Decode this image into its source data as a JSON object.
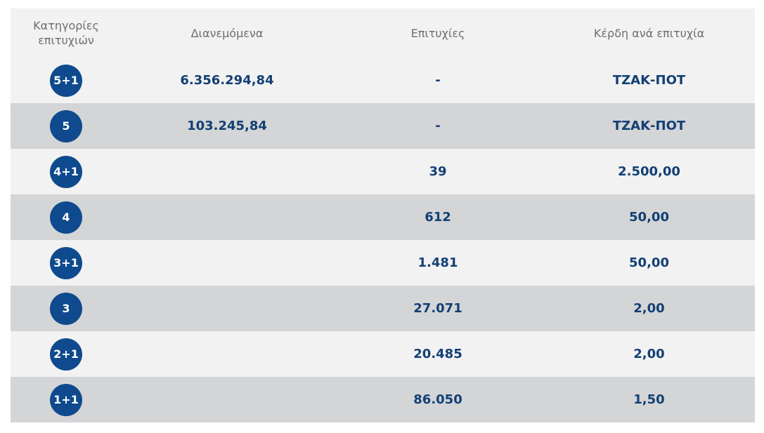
{
  "table": {
    "headers": {
      "category_line1": "Κατηγορίες",
      "category_line2": "επιτυχιών",
      "distributed": "Διανεμόμενα",
      "winners": "Επιτυχίες",
      "prize_per_winner": "Κέρδη ανά επιτυχία"
    },
    "rows": [
      {
        "category": "5+1",
        "distributed": "6.356.294,84",
        "winners": "-",
        "prize": "ΤΖΑΚ-ΠΟΤ"
      },
      {
        "category": "5",
        "distributed": "103.245,84",
        "winners": "-",
        "prize": "ΤΖΑΚ-ΠΟΤ"
      },
      {
        "category": "4+1",
        "distributed": "",
        "winners": "39",
        "prize": "2.500,00"
      },
      {
        "category": "4",
        "distributed": "",
        "winners": "612",
        "prize": "50,00"
      },
      {
        "category": "3+1",
        "distributed": "",
        "winners": "1.481",
        "prize": "50,00"
      },
      {
        "category": "3",
        "distributed": "",
        "winners": "27.071",
        "prize": "2,00"
      },
      {
        "category": "2+1",
        "distributed": "",
        "winners": "20.485",
        "prize": "2,00"
      },
      {
        "category": "1+1",
        "distributed": "",
        "winners": "86.050",
        "prize": "1,50"
      }
    ]
  },
  "colors": {
    "badge": "#0e4a8d",
    "value_text": "#123f74",
    "header_text": "#6b6f73",
    "row_light": "#f2f2f2",
    "row_dark": "#d4d5d7"
  }
}
